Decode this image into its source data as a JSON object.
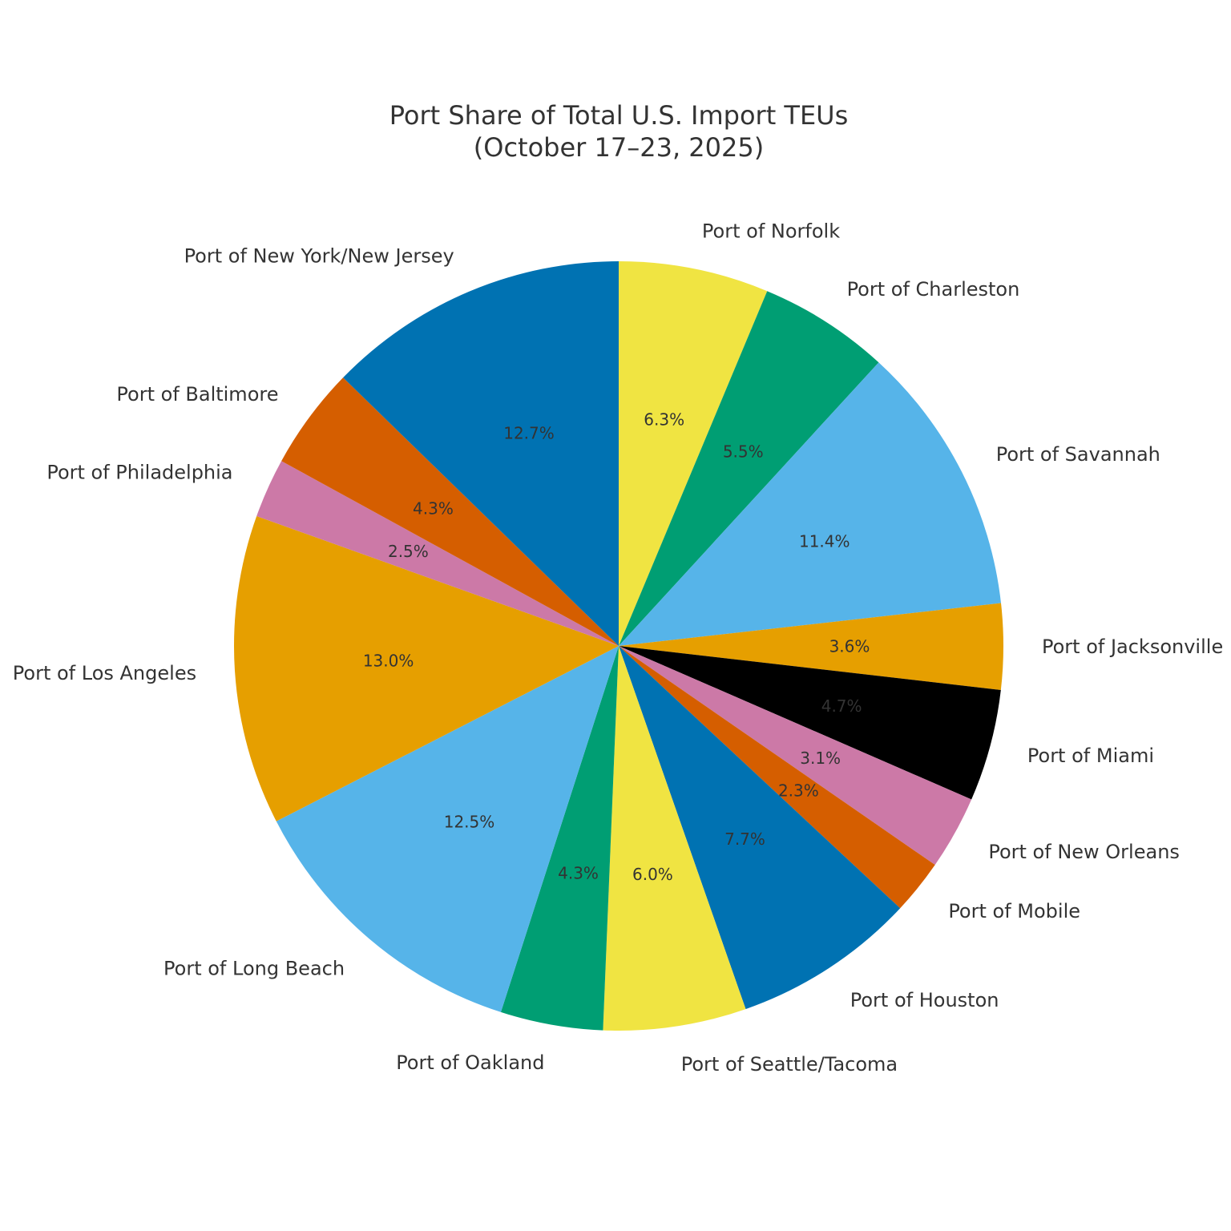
{
  "chart_data": {
    "type": "pie",
    "title": "Port Share of Total U.S. Import TEUs",
    "subtitle": "(October 17–23, 2025)",
    "start_angle_deg": 90,
    "direction": "clockwise",
    "slices": [
      {
        "label": "Port of Norfolk",
        "value": 6.3,
        "pct_label": "6.3%",
        "color": "#F0E442"
      },
      {
        "label": "Port of Charleston",
        "value": 5.5,
        "pct_label": "5.5%",
        "color": "#009E73"
      },
      {
        "label": "Port of Savannah",
        "value": 11.4,
        "pct_label": "11.4%",
        "color": "#56B4E9"
      },
      {
        "label": "Port of Jacksonville",
        "value": 3.6,
        "pct_label": "3.6%",
        "color": "#E69F00"
      },
      {
        "label": "Port of Miami",
        "value": 4.7,
        "pct_label": "4.7%",
        "color": "#000000"
      },
      {
        "label": "Port of New Orleans",
        "value": 3.1,
        "pct_label": "3.1%",
        "color": "#CC79A7"
      },
      {
        "label": "Port of Mobile",
        "value": 2.3,
        "pct_label": "2.3%",
        "color": "#D55E00"
      },
      {
        "label": "Port of Houston",
        "value": 7.7,
        "pct_label": "7.7%",
        "color": "#0072B2"
      },
      {
        "label": "Port of Seattle/Tacoma",
        "value": 6.0,
        "pct_label": "6.0%",
        "color": "#F0E442"
      },
      {
        "label": "Port of Oakland",
        "value": 4.3,
        "pct_label": "4.3%",
        "color": "#009E73"
      },
      {
        "label": "Port of Long Beach",
        "value": 12.5,
        "pct_label": "12.5%",
        "color": "#56B4E9"
      },
      {
        "label": "Port of Los Angeles",
        "value": 13.0,
        "pct_label": "13.0%",
        "color": "#E69F00"
      },
      {
        "label": "Port of Philadelphia",
        "value": 2.5,
        "pct_label": "2.5%",
        "color": "#CC79A7"
      },
      {
        "label": "Port of Baltimore",
        "value": 4.3,
        "pct_label": "4.3%",
        "color": "#D55E00"
      },
      {
        "label": "Port of New York/New Jersey",
        "value": 12.7,
        "pct_label": "12.7%",
        "color": "#0072B2"
      }
    ]
  }
}
